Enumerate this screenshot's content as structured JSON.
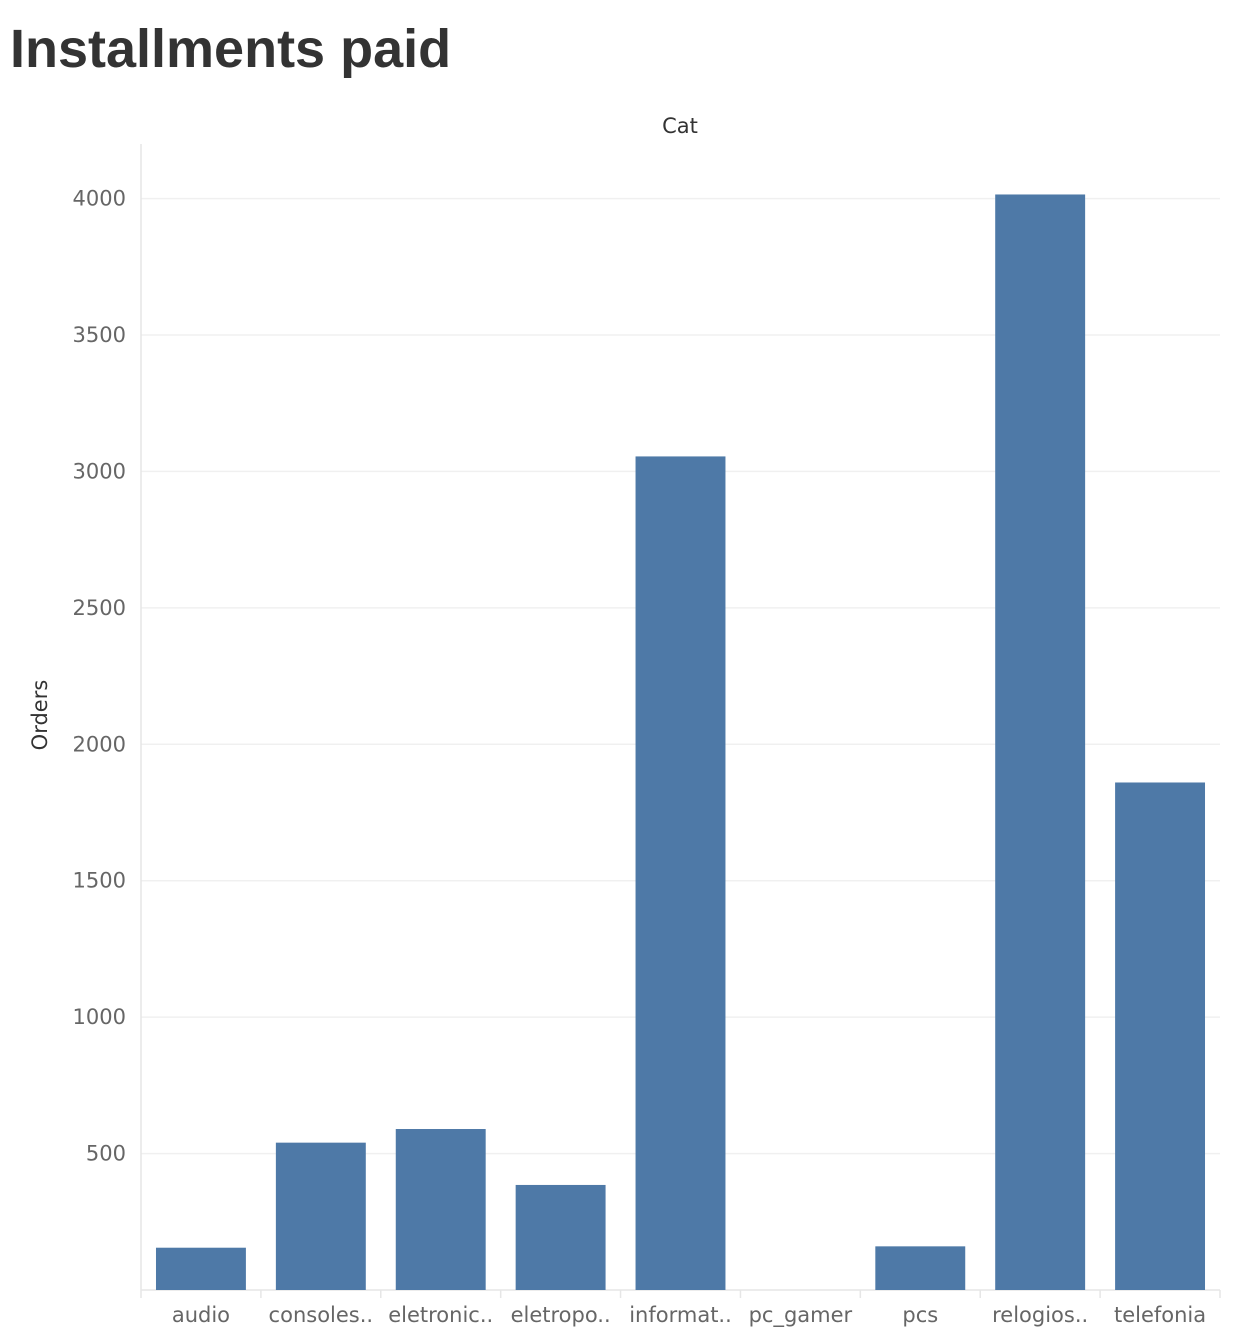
{
  "page": {
    "title": "Installments paid"
  },
  "chart_data": {
    "type": "bar",
    "column_header": "Cat",
    "ylabel": "Orders",
    "xlabel": "",
    "categories": [
      "audio",
      "consoles..",
      "eletronic..",
      "eletropo..",
      "informat..",
      "pc_gamer",
      "pcs",
      "relogios..",
      "telefonia"
    ],
    "values": [
      155,
      540,
      590,
      385,
      3055,
      0,
      160,
      4015,
      1860
    ],
    "ylim": [
      0,
      4200
    ],
    "yticks": [
      500,
      1000,
      1500,
      2000,
      2500,
      3000,
      3500,
      4000
    ],
    "grid": true,
    "legend": "none",
    "bar_color": "#4e79a7"
  }
}
